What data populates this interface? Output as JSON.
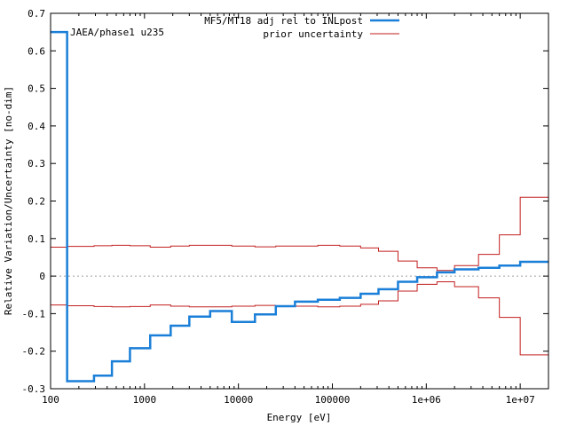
{
  "chart_data": {
    "type": "line",
    "step": true,
    "x_scale": "log",
    "title": "",
    "xlabel": "Energy [eV]",
    "ylabel": "Relative Variation/Uncertainty [no-dim]",
    "xlim": [
      100,
      20000000
    ],
    "ylim": [
      -0.3,
      0.7
    ],
    "x_ticks": [
      {
        "value": 100,
        "label": "100"
      },
      {
        "value": 1000,
        "label": "1000"
      },
      {
        "value": 10000,
        "label": "10000"
      },
      {
        "value": 100000,
        "label": "100000"
      },
      {
        "value": 1000000,
        "label": "1e+06"
      },
      {
        "value": 10000000,
        "label": "1e+07"
      }
    ],
    "y_ticks": [
      {
        "value": 0.7,
        "label": "0.7"
      },
      {
        "value": 0.6,
        "label": "0.6"
      },
      {
        "value": 0.5,
        "label": "0.5"
      },
      {
        "value": 0.4,
        "label": "0.4"
      },
      {
        "value": 0.3,
        "label": "0.3"
      },
      {
        "value": 0.2,
        "label": "0.2"
      },
      {
        "value": 0.1,
        "label": "0.1"
      },
      {
        "value": 0,
        "label": "0"
      },
      {
        "value": -0.1,
        "label": "-0.1"
      },
      {
        "value": -0.2,
        "label": "-0.2"
      },
      {
        "value": -0.3,
        "label": "-0.3"
      }
    ],
    "annotation": "JAEA/phase1 u235",
    "legend_position": "top-right",
    "bin_edges": [
      100,
      150,
      290,
      450,
      700,
      1150,
      1900,
      3000,
      5000,
      8500,
      15000,
      25000,
      40000,
      70000,
      120000,
      200000,
      310000,
      500000,
      800000,
      1300000,
      2000000,
      3600000,
      6000000,
      10000000,
      20000000
    ],
    "series": [
      {
        "name": "MF5/MT18 adj rel to INLpost",
        "color": "#1a7fd8",
        "values": [
          0.65,
          -0.28,
          -0.265,
          -0.227,
          -0.192,
          -0.158,
          -0.132,
          -0.108,
          -0.093,
          -0.122,
          -0.102,
          -0.08,
          -0.068,
          -0.063,
          -0.058,
          -0.047,
          -0.035,
          -0.015,
          -0.003,
          0.01,
          0.018,
          0.022,
          0.028,
          0.038
        ]
      },
      {
        "name": "prior uncertainty",
        "color": "#c21e1e",
        "values": [
          0.077,
          0.079,
          0.081,
          0.082,
          0.081,
          0.077,
          0.08,
          0.082,
          0.082,
          0.08,
          0.078,
          0.08,
          0.08,
          0.082,
          0.08,
          0.075,
          0.066,
          0.04,
          0.022,
          0.015,
          0.028,
          0.058,
          0.11,
          0.21
        ],
        "mirrored": true
      }
    ]
  }
}
